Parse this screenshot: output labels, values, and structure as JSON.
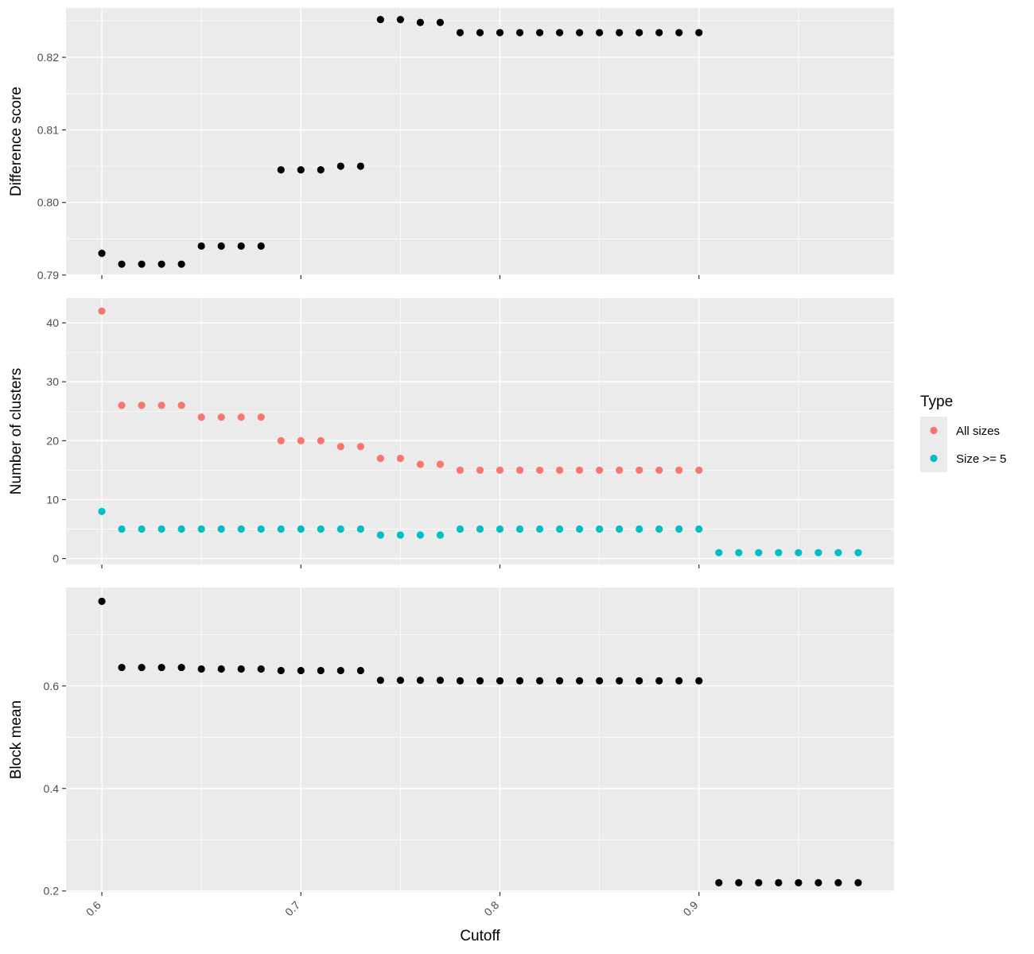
{
  "chart_data": [
    {
      "type": "scatter",
      "ylabel": "Difference score",
      "xlabel": "",
      "xlim": [
        0.582,
        0.998
      ],
      "ylim": [
        0.79,
        0.8268
      ],
      "yticks": [
        0.79,
        0.8,
        0.81,
        0.82
      ],
      "ytick_labels": [
        "0.79",
        "0.80",
        "0.81",
        "0.82"
      ],
      "xticks": [
        0.6,
        0.7,
        0.8,
        0.9
      ],
      "grid": true,
      "series": [
        {
          "color": "#000000",
          "x": [
            0.6,
            0.61,
            0.62,
            0.63,
            0.64,
            0.65,
            0.66,
            0.67,
            0.68,
            0.69,
            0.7,
            0.71,
            0.72,
            0.73,
            0.74,
            0.75,
            0.76,
            0.77,
            0.78,
            0.79,
            0.8,
            0.81,
            0.82,
            0.83,
            0.84,
            0.85,
            0.86,
            0.87,
            0.88,
            0.89,
            0.9
          ],
          "y": [
            0.793,
            0.7915,
            0.7915,
            0.7915,
            0.7915,
            0.794,
            0.794,
            0.794,
            0.794,
            0.8045,
            0.8045,
            0.8045,
            0.805,
            0.805,
            0.8252,
            0.8252,
            0.8248,
            0.8248,
            0.8234,
            0.8234,
            0.8234,
            0.8234,
            0.8234,
            0.8234,
            0.8234,
            0.8234,
            0.8234,
            0.8234,
            0.8234,
            0.8234,
            0.8234
          ]
        }
      ]
    },
    {
      "type": "scatter",
      "ylabel": "Number of clusters",
      "xlabel": "",
      "xlim": [
        0.582,
        0.998
      ],
      "ylim": [
        -1,
        44.2
      ],
      "yticks": [
        0,
        10,
        20,
        30,
        40
      ],
      "ytick_labels": [
        "0",
        "10",
        "20",
        "30",
        "40"
      ],
      "xticks": [
        0.6,
        0.7,
        0.8,
        0.9
      ],
      "grid": true,
      "legend": {
        "title": "Type",
        "position": "right"
      },
      "series": [
        {
          "name": "All sizes",
          "color": "#F8766D",
          "x": [
            0.6,
            0.61,
            0.62,
            0.63,
            0.64,
            0.65,
            0.66,
            0.67,
            0.68,
            0.69,
            0.7,
            0.71,
            0.72,
            0.73,
            0.74,
            0.75,
            0.76,
            0.77,
            0.78,
            0.79,
            0.8,
            0.81,
            0.82,
            0.83,
            0.84,
            0.85,
            0.86,
            0.87,
            0.88,
            0.89,
            0.9
          ],
          "y": [
            42,
            26,
            26,
            26,
            26,
            24,
            24,
            24,
            24,
            20,
            20,
            20,
            19,
            19,
            17,
            17,
            16,
            16,
            15,
            15,
            15,
            15,
            15,
            15,
            15,
            15,
            15,
            15,
            15,
            15,
            15
          ]
        },
        {
          "name": "Size >= 5",
          "color": "#00BFC4",
          "x": [
            0.6,
            0.61,
            0.62,
            0.63,
            0.64,
            0.65,
            0.66,
            0.67,
            0.68,
            0.69,
            0.7,
            0.71,
            0.72,
            0.73,
            0.74,
            0.75,
            0.76,
            0.77,
            0.78,
            0.79,
            0.8,
            0.81,
            0.82,
            0.83,
            0.84,
            0.85,
            0.86,
            0.87,
            0.88,
            0.89,
            0.9,
            0.91,
            0.92,
            0.93,
            0.94,
            0.95,
            0.96,
            0.97,
            0.98
          ],
          "y": [
            8,
            5,
            5,
            5,
            5,
            5,
            5,
            5,
            5,
            5,
            5,
            5,
            5,
            5,
            4,
            4,
            4,
            4,
            5,
            5,
            5,
            5,
            5,
            5,
            5,
            5,
            5,
            5,
            5,
            5,
            5,
            1,
            1,
            1,
            1,
            1,
            1,
            1,
            1
          ]
        }
      ]
    },
    {
      "type": "scatter",
      "ylabel": "Block mean",
      "xlabel": "Cutoff",
      "xlim": [
        0.582,
        0.998
      ],
      "ylim": [
        0.198,
        0.792
      ],
      "yticks": [
        0.2,
        0.4,
        0.6
      ],
      "ytick_labels": [
        "0.2",
        "0.4",
        "0.6"
      ],
      "xticks": [
        0.6,
        0.7,
        0.8,
        0.9
      ],
      "xtick_labels": [
        "0.6",
        "0.7",
        "0.8",
        "0.9"
      ],
      "grid": true,
      "series": [
        {
          "color": "#000000",
          "x": [
            0.6,
            0.61,
            0.62,
            0.63,
            0.64,
            0.65,
            0.66,
            0.67,
            0.68,
            0.69,
            0.7,
            0.71,
            0.72,
            0.73,
            0.74,
            0.75,
            0.76,
            0.77,
            0.78,
            0.79,
            0.8,
            0.81,
            0.82,
            0.83,
            0.84,
            0.85,
            0.86,
            0.87,
            0.88,
            0.89,
            0.9,
            0.91,
            0.92,
            0.93,
            0.94,
            0.95,
            0.96,
            0.97,
            0.98
          ],
          "y": [
            0.765,
            0.636,
            0.636,
            0.636,
            0.636,
            0.633,
            0.633,
            0.633,
            0.633,
            0.63,
            0.63,
            0.63,
            0.63,
            0.63,
            0.611,
            0.611,
            0.611,
            0.611,
            0.61,
            0.61,
            0.61,
            0.61,
            0.61,
            0.61,
            0.61,
            0.61,
            0.61,
            0.61,
            0.61,
            0.61,
            0.61,
            0.216,
            0.216,
            0.216,
            0.216,
            0.216,
            0.216,
            0.216,
            0.216
          ]
        }
      ]
    }
  ]
}
